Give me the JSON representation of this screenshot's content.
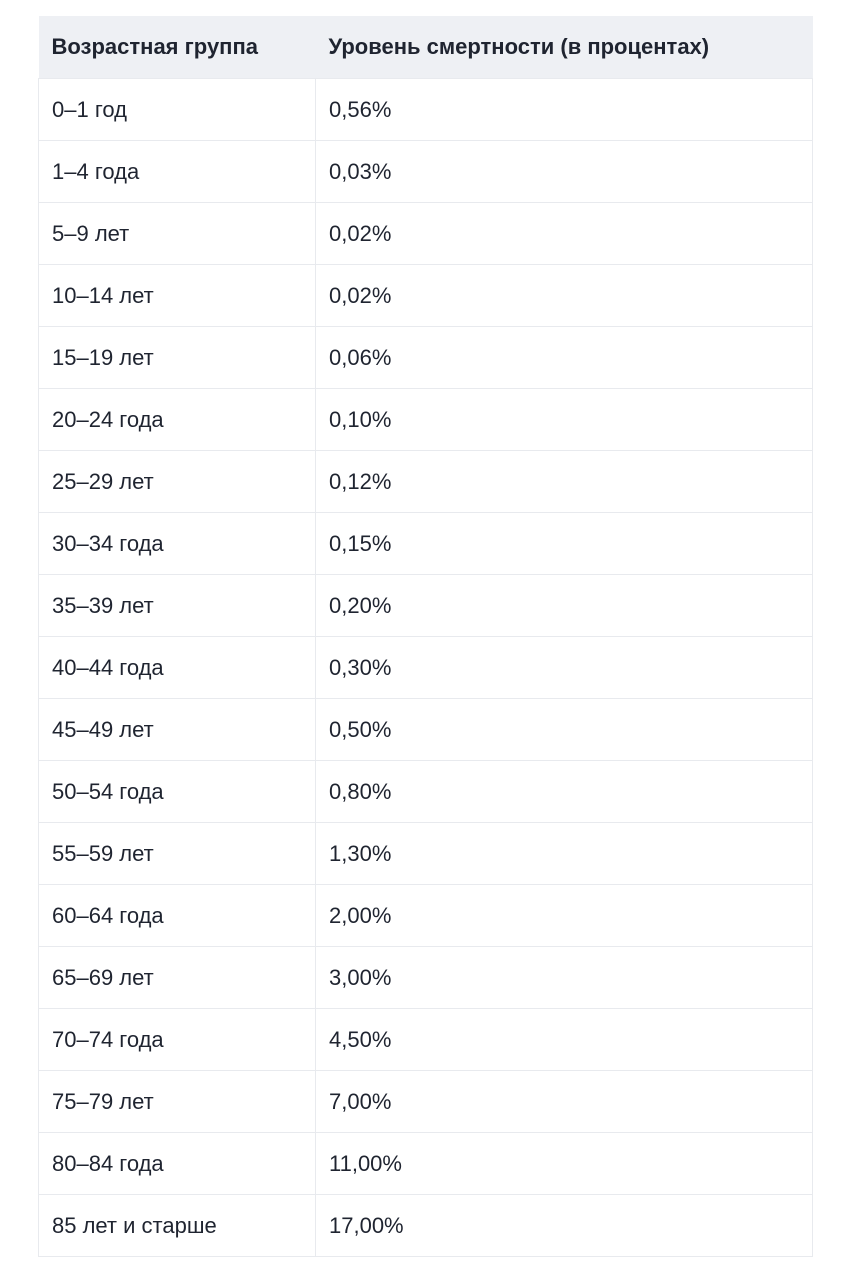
{
  "colors": {
    "page_bg": "#ffffff",
    "header_bg": "#eef0f4",
    "border": "#e8eaee",
    "text": "#1f2430"
  },
  "table": {
    "headers": [
      "Возрастная группа",
      "Уровень смертности (в процентах)"
    ],
    "rows": [
      [
        "0–1 год",
        "0,56%"
      ],
      [
        "1–4 года",
        "0,03%"
      ],
      [
        "5–9 лет",
        "0,02%"
      ],
      [
        "10–14 лет",
        "0,02%"
      ],
      [
        "15–19 лет",
        "0,06%"
      ],
      [
        "20–24 года",
        "0,10%"
      ],
      [
        "25–29 лет",
        "0,12%"
      ],
      [
        "30–34 года",
        "0,15%"
      ],
      [
        "35–39 лет",
        "0,20%"
      ],
      [
        "40–44 года",
        "0,30%"
      ],
      [
        "45–49 лет",
        "0,50%"
      ],
      [
        "50–54 года",
        "0,80%"
      ],
      [
        "55–59 лет",
        "1,30%"
      ],
      [
        "60–64 года",
        "2,00%"
      ],
      [
        "65–69 лет",
        "3,00%"
      ],
      [
        "70–74 года",
        "4,50%"
      ],
      [
        "75–79 лет",
        "7,00%"
      ],
      [
        "80–84 года",
        "11,00%"
      ],
      [
        "85 лет и старше",
        "17,00%"
      ]
    ]
  },
  "chart_data": {
    "type": "table",
    "columns": [
      "Возрастная группа",
      "Уровень смертности (в процентах)"
    ],
    "rows": [
      [
        "0–1 год",
        "0,56%"
      ],
      [
        "1–4 года",
        "0,03%"
      ],
      [
        "5–9 лет",
        "0,02%"
      ],
      [
        "10–14 лет",
        "0,02%"
      ],
      [
        "15–19 лет",
        "0,06%"
      ],
      [
        "20–24 года",
        "0,10%"
      ],
      [
        "25–29 лет",
        "0,12%"
      ],
      [
        "30–34 года",
        "0,15%"
      ],
      [
        "35–39 лет",
        "0,20%"
      ],
      [
        "40–44 года",
        "0,30%"
      ],
      [
        "45–49 лет",
        "0,50%"
      ],
      [
        "50–54 года",
        "0,80%"
      ],
      [
        "55–59 лет",
        "1,30%"
      ],
      [
        "60–64 года",
        "2,00%"
      ],
      [
        "65–69 лет",
        "3,00%"
      ],
      [
        "70–74 года",
        "4,50%"
      ],
      [
        "75–79 лет",
        "7,00%"
      ],
      [
        "80–84 года",
        "11,00%"
      ],
      [
        "85 лет и старше",
        "17,00%"
      ]
    ],
    "categories": [
      "0–1",
      "1–4",
      "5–9",
      "10–14",
      "15–19",
      "20–24",
      "25–29",
      "30–34",
      "35–39",
      "40–44",
      "45–49",
      "50–54",
      "55–59",
      "60–64",
      "65–69",
      "70–74",
      "75–79",
      "80–84",
      "85+"
    ],
    "values_percent": [
      0.56,
      0.03,
      0.02,
      0.02,
      0.06,
      0.1,
      0.12,
      0.15,
      0.2,
      0.3,
      0.5,
      0.8,
      1.3,
      2.0,
      3.0,
      4.5,
      7.0,
      11.0,
      17.0
    ]
  }
}
